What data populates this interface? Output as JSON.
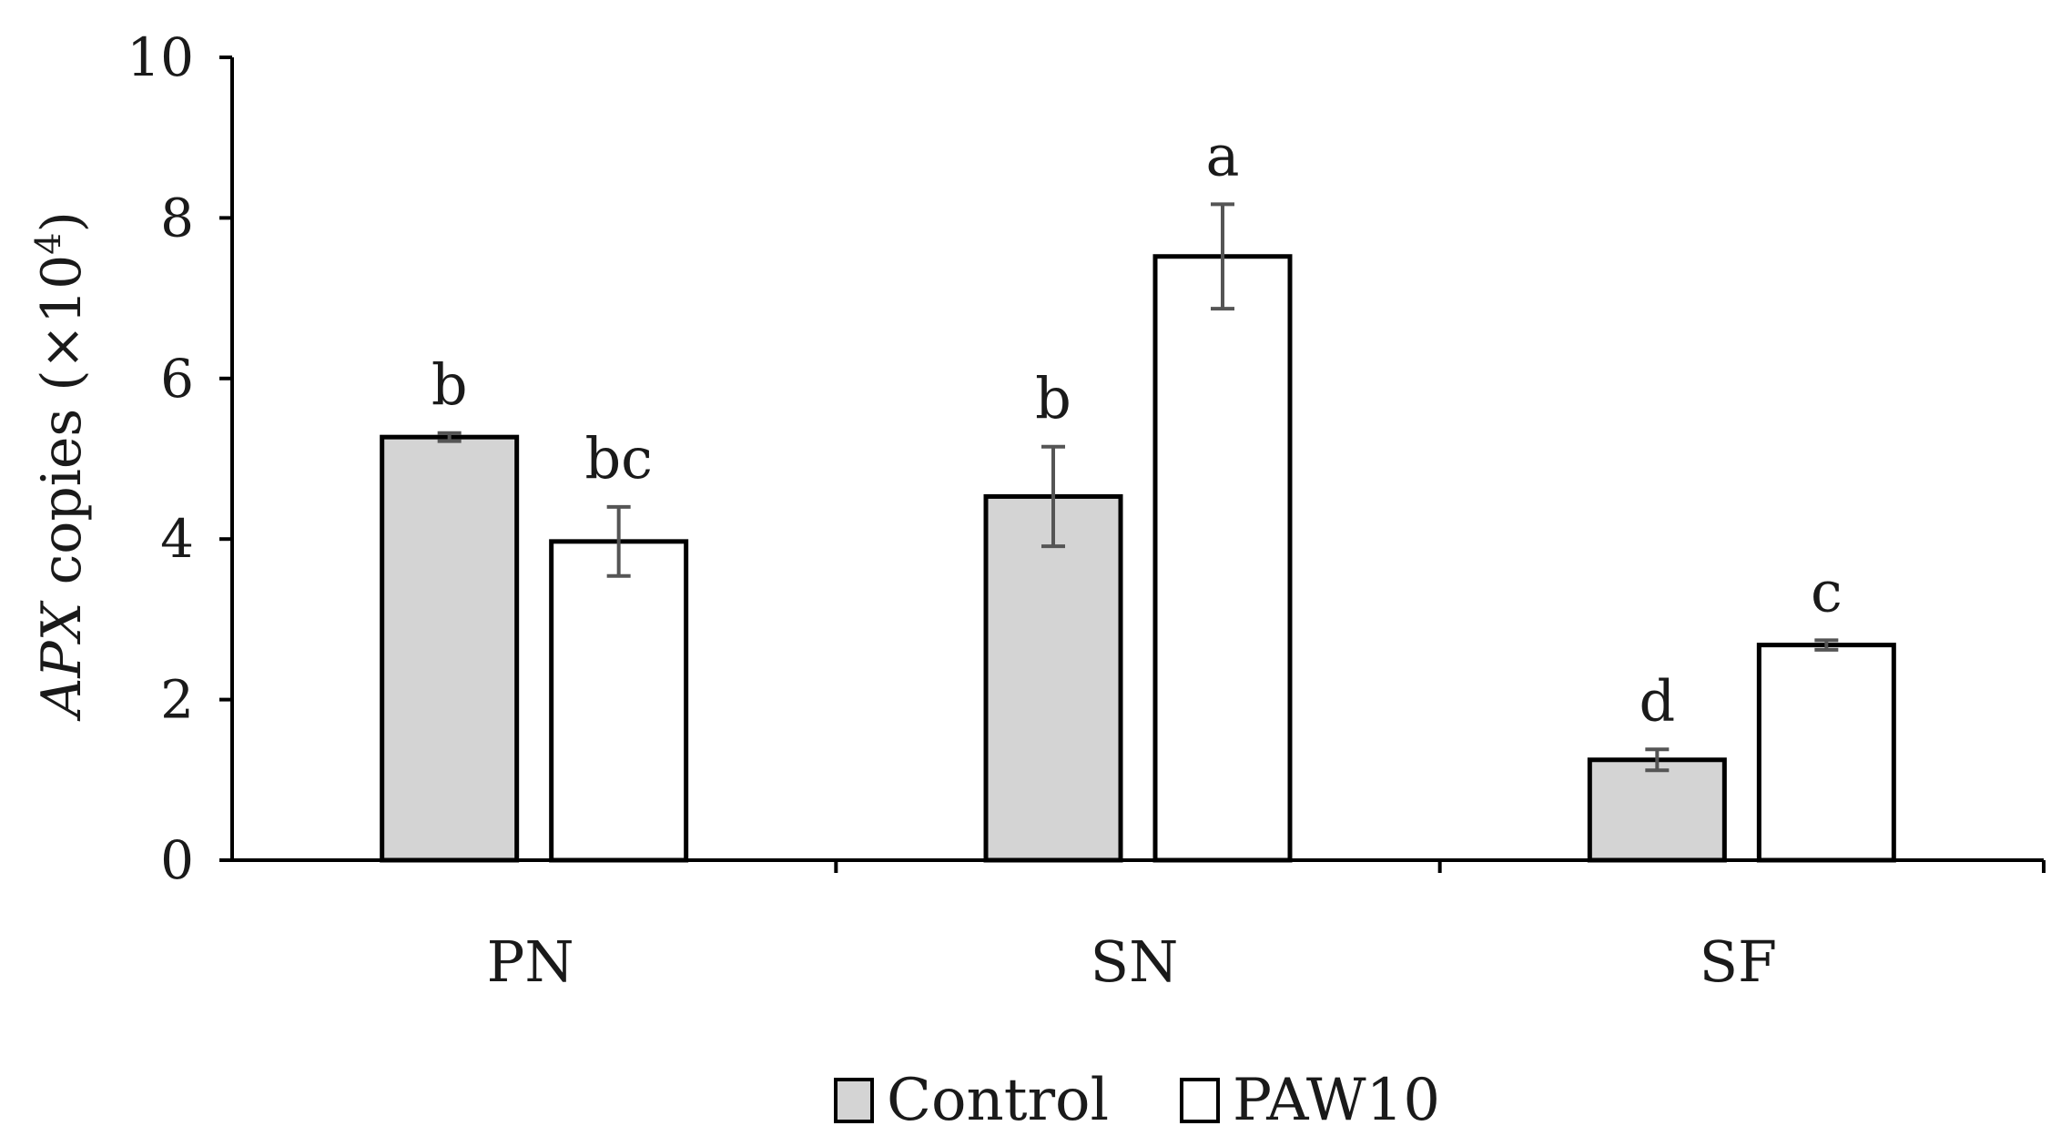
{
  "chart_data": {
    "type": "bar",
    "ylabel_italic": "APX",
    "ylabel_rest": " copies (×10",
    "ylabel_sup": "4",
    "ylabel_close": ")",
    "ylim": [
      0,
      10
    ],
    "yticks": [
      "0",
      "2",
      "4",
      "6",
      "8",
      "10"
    ],
    "categories": [
      "PN",
      "SN",
      "SF"
    ],
    "series": [
      {
        "name": "Control",
        "color": "#d4d4d4",
        "values": [
          5.27,
          4.53,
          1.25
        ],
        "errors": [
          0.05,
          0.62,
          0.13
        ],
        "labels": [
          "b",
          "b",
          "d"
        ]
      },
      {
        "name": "PAW10",
        "color": "#ffffff",
        "values": [
          3.97,
          7.52,
          2.68
        ],
        "errors": [
          0.43,
          0.65,
          0.06
        ],
        "labels": [
          "bc",
          "a",
          "c"
        ]
      }
    ],
    "legend_position": "bottom-center",
    "grid": false
  }
}
